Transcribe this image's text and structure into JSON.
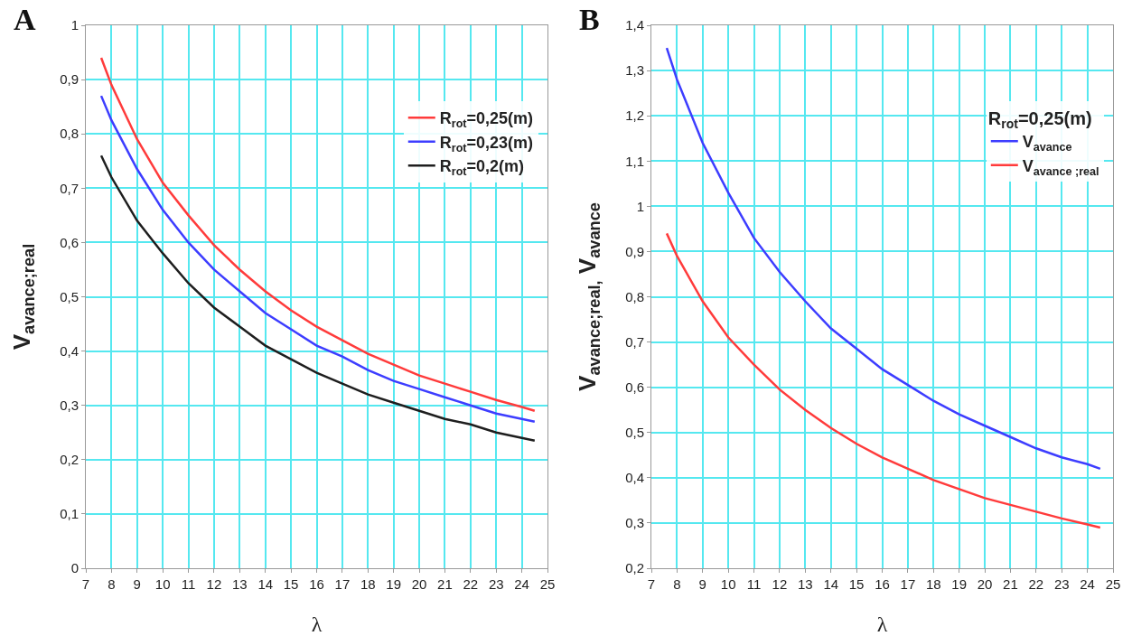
{
  "chart_data": [
    {
      "type": "line",
      "annotations": [
        "A"
      ],
      "xlabel": "λ",
      "ylabel": "V$_{avance;real}$",
      "x": [
        7.6,
        8,
        9,
        10,
        11,
        12,
        13,
        14,
        15,
        16,
        17,
        18,
        19,
        20,
        21,
        22,
        23,
        24,
        24.5
      ],
      "series": [
        {
          "name": "R$_{rot}$=0,25(m)",
          "color": "#ff3b3b",
          "values": [
            0.94,
            0.89,
            0.79,
            0.71,
            0.65,
            0.595,
            0.55,
            0.51,
            0.475,
            0.445,
            0.42,
            0.395,
            0.375,
            0.355,
            0.34,
            0.325,
            0.31,
            0.297,
            0.29
          ]
        },
        {
          "name": "R$_{rot}$=0,23(m)",
          "color": "#3d3dff",
          "values": [
            0.87,
            0.825,
            0.735,
            0.66,
            0.6,
            0.55,
            0.51,
            0.47,
            0.44,
            0.41,
            0.39,
            0.365,
            0.345,
            0.33,
            0.315,
            0.3,
            0.285,
            0.275,
            0.27
          ]
        },
        {
          "name": "R$_{rot}$=0,2(m)",
          "color": "#1e1e1e",
          "values": [
            0.76,
            0.72,
            0.64,
            0.58,
            0.525,
            0.48,
            0.445,
            0.41,
            0.385,
            0.36,
            0.34,
            0.32,
            0.305,
            0.29,
            0.275,
            0.265,
            0.25,
            0.24,
            0.235
          ]
        }
      ],
      "xlim": [
        7,
        25
      ],
      "xticks": [
        7,
        8,
        9,
        10,
        11,
        12,
        13,
        14,
        15,
        16,
        17,
        18,
        19,
        20,
        21,
        22,
        23,
        24,
        25
      ],
      "ylim": [
        0,
        1
      ],
      "yticks": [
        {
          "value": 0,
          "label": "0"
        },
        {
          "value": 0.1,
          "label": "0,1"
        },
        {
          "value": 0.2,
          "label": "0,2"
        },
        {
          "value": 0.3,
          "label": "0,3"
        },
        {
          "value": 0.4,
          "label": "0,4"
        },
        {
          "value": 0.5,
          "label": "0,5"
        },
        {
          "value": 0.6,
          "label": "0,6"
        },
        {
          "value": 0.7,
          "label": "0,7"
        },
        {
          "value": 0.8,
          "label": "0,8"
        },
        {
          "value": 0.9,
          "label": "0,9"
        },
        {
          "value": 1,
          "label": "1"
        }
      ],
      "grid": true,
      "legend": "top right",
      "marker": "none",
      "line_style": "solid"
    },
    {
      "type": "line",
      "annotations": [
        "B"
      ],
      "xlabel": "λ",
      "ylabel": "V$_{avance;real,}$ V$_{avance}$",
      "legend_title": "R$_{rot}$=0,25(m)",
      "x": [
        7.6,
        8,
        9,
        10,
        11,
        12,
        13,
        14,
        15,
        16,
        17,
        18,
        19,
        20,
        21,
        22,
        23,
        24,
        24.5
      ],
      "series": [
        {
          "name": "V$_{avance}$",
          "color": "#3d3dff",
          "values": [
            1.35,
            1.28,
            1.14,
            1.03,
            0.93,
            0.855,
            0.79,
            0.73,
            0.685,
            0.64,
            0.605,
            0.57,
            0.54,
            0.515,
            0.49,
            0.465,
            0.445,
            0.43,
            0.42
          ]
        },
        {
          "name": "V$_{avance ;real}$",
          "color": "#ff3b3b",
          "values": [
            0.94,
            0.89,
            0.79,
            0.71,
            0.65,
            0.595,
            0.55,
            0.51,
            0.475,
            0.445,
            0.42,
            0.395,
            0.375,
            0.355,
            0.34,
            0.325,
            0.31,
            0.297,
            0.29
          ]
        }
      ],
      "xlim": [
        7,
        25
      ],
      "xticks": [
        7,
        8,
        9,
        10,
        11,
        12,
        13,
        14,
        15,
        16,
        17,
        18,
        19,
        20,
        21,
        22,
        23,
        24,
        25
      ],
      "ylim": [
        0.2,
        1.4
      ],
      "yticks": [
        {
          "value": 0.2,
          "label": "0,2"
        },
        {
          "value": 0.3,
          "label": "0,3"
        },
        {
          "value": 0.4,
          "label": "0,4"
        },
        {
          "value": 0.5,
          "label": "0,5"
        },
        {
          "value": 0.6,
          "label": "0,6"
        },
        {
          "value": 0.7,
          "label": "0,7"
        },
        {
          "value": 0.8,
          "label": "0,8"
        },
        {
          "value": 0.9,
          "label": "0,9"
        },
        {
          "value": 1,
          "label": "1"
        },
        {
          "value": 1.1,
          "label": "1,1"
        },
        {
          "value": 1.2,
          "label": "1,2"
        },
        {
          "value": 1.3,
          "label": "1,3"
        },
        {
          "value": 1.4,
          "label": "1,4"
        }
      ],
      "grid": true,
      "legend": "top right",
      "marker": "none",
      "line_style": "solid"
    }
  ]
}
